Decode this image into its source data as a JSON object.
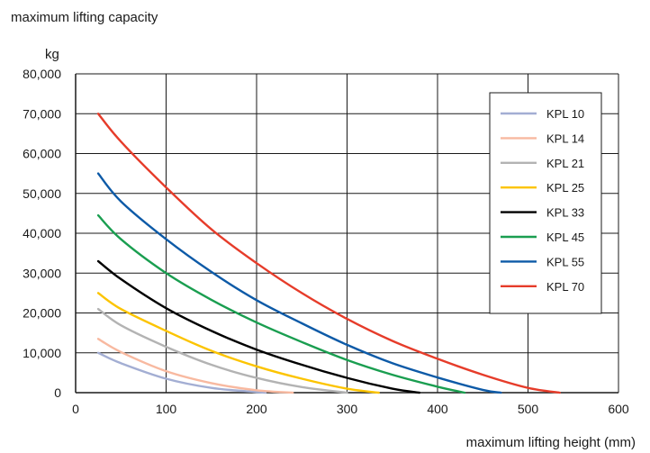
{
  "chart_data": {
    "type": "line",
    "title": "maximum lifting capacity",
    "ylabel": "kg",
    "xlabel": "maximum lifting height (mm)",
    "xlim": [
      0,
      600
    ],
    "ylim": [
      0,
      80000
    ],
    "x_ticks": [
      "0",
      "100",
      "200",
      "300",
      "400",
      "500",
      "600"
    ],
    "y_ticks": [
      "0",
      "10,000",
      "20,000",
      "30,000",
      "40,000",
      "50,000",
      "60,000",
      "70,000",
      "80,000"
    ],
    "grid": true,
    "legend_position": "top-right",
    "series": [
      {
        "name": "KPL 10",
        "color": "#a3aed3",
        "x": [
          25,
          50,
          100,
          150,
          200,
          210
        ],
        "y": [
          10000,
          7400,
          3500,
          1200,
          150,
          0
        ]
      },
      {
        "name": "KPL 14",
        "color": "#f8b9a0",
        "x": [
          25,
          50,
          100,
          150,
          200,
          240
        ],
        "y": [
          13500,
          10200,
          5400,
          2400,
          600,
          0
        ]
      },
      {
        "name": "KPL 21",
        "color": "#b3b3b3",
        "x": [
          25,
          50,
          100,
          150,
          200,
          250,
          300
        ],
        "y": [
          21000,
          16900,
          11500,
          7000,
          3700,
          1400,
          0
        ]
      },
      {
        "name": "KPL 25",
        "color": "#fcc400",
        "x": [
          25,
          50,
          100,
          150,
          200,
          250,
          300,
          335
        ],
        "y": [
          25000,
          21000,
          15500,
          10500,
          6600,
          3500,
          1000,
          0
        ]
      },
      {
        "name": "KPL 33",
        "color": "#000000",
        "x": [
          25,
          50,
          100,
          150,
          200,
          250,
          300,
          350,
          380
        ],
        "y": [
          33000,
          28500,
          21200,
          15500,
          10800,
          7000,
          3700,
          1000,
          0
        ]
      },
      {
        "name": "KPL 45",
        "color": "#1a9e50",
        "x": [
          25,
          50,
          100,
          150,
          200,
          250,
          300,
          350,
          400,
          430
        ],
        "y": [
          44500,
          38500,
          30000,
          23300,
          17600,
          12700,
          8200,
          4500,
          1500,
          0
        ]
      },
      {
        "name": "KPL 55",
        "color": "#0d5aa7",
        "x": [
          25,
          50,
          100,
          150,
          200,
          250,
          300,
          350,
          400,
          450,
          470
        ],
        "y": [
          55000,
          48000,
          38500,
          30300,
          23200,
          17400,
          12000,
          7400,
          3800,
          700,
          0
        ]
      },
      {
        "name": "KPL 70",
        "color": "#e63c2a",
        "x": [
          25,
          50,
          100,
          150,
          200,
          250,
          300,
          350,
          400,
          450,
          500,
          535
        ],
        "y": [
          70000,
          63000,
          51500,
          41000,
          32500,
          25000,
          18500,
          13000,
          8500,
          4500,
          1200,
          0
        ]
      }
    ]
  }
}
